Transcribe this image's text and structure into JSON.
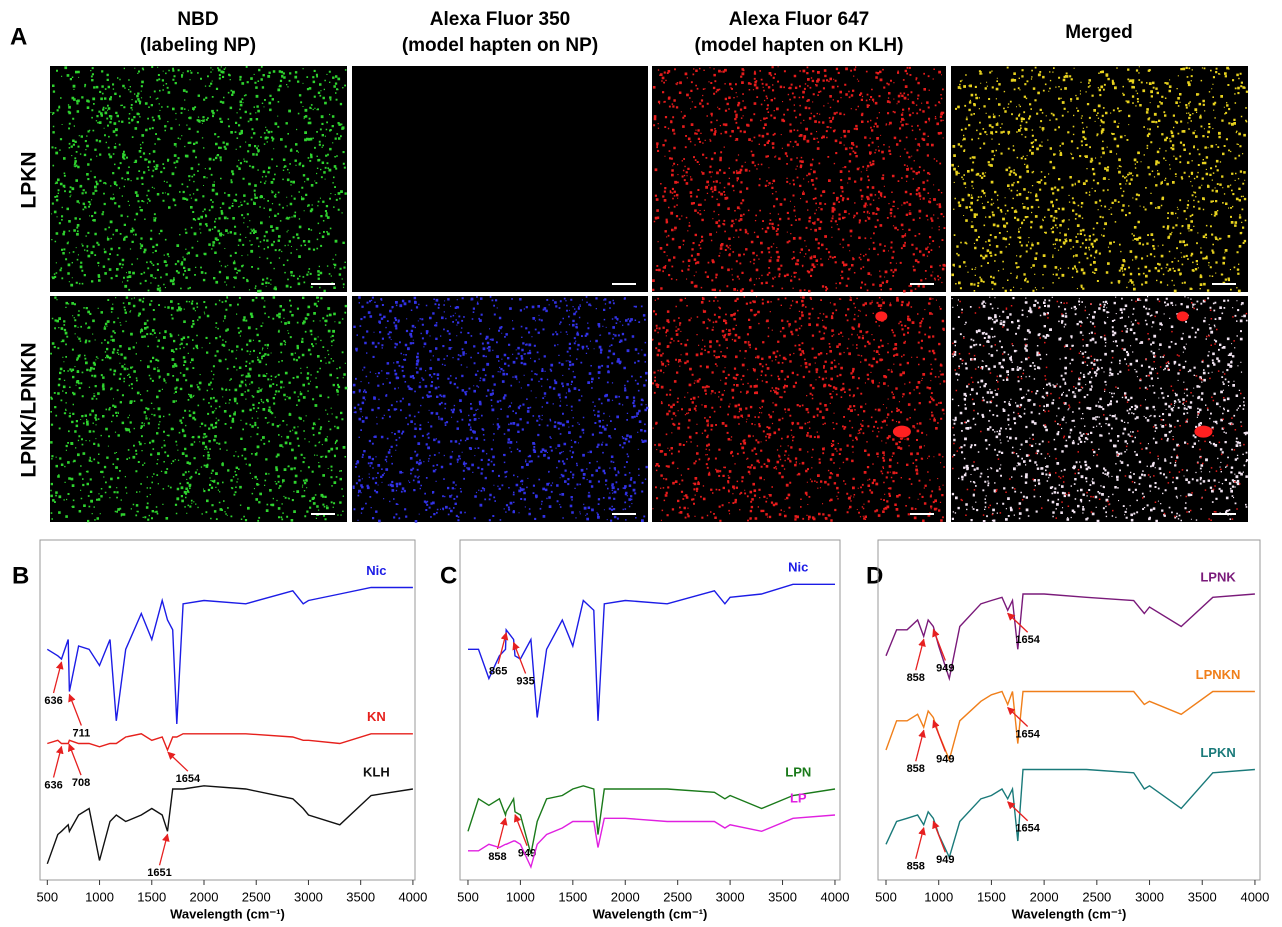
{
  "panel_a": {
    "label": "A",
    "columns": [
      [
        "NBD",
        "(labeling NP)"
      ],
      [
        "Alexa Fluor 350",
        "(model hapten on NP)"
      ],
      [
        "Alexa Fluor 647",
        "(model hapten on KLH)"
      ],
      [
        "Merged"
      ]
    ],
    "rows": [
      "LPKN",
      "LPNK/LPNKN"
    ]
  },
  "chart_data": [
    {
      "type": "line",
      "label": "B",
      "xlabel": "Wavelength (cm⁻¹)",
      "xlim": [
        430,
        4020
      ],
      "ylim": [
        0,
        100
      ],
      "xticks": [
        500,
        1000,
        1500,
        2000,
        2500,
        3000,
        3500,
        4000
      ],
      "x": [
        500,
        600,
        636,
        700,
        711,
        800,
        900,
        1000,
        1100,
        1160,
        1250,
        1400,
        1500,
        1600,
        1651,
        1700,
        1740,
        1800,
        2000,
        2400,
        2850,
        2950,
        3000,
        3300,
        3600,
        4000
      ],
      "series": [
        {
          "name": "Nic",
          "color": "#1c1ce6",
          "peaks": [
            636,
            711
          ],
          "values": [
            71,
            69,
            68,
            74,
            58,
            72,
            71,
            66,
            74,
            49,
            71,
            82,
            74,
            86,
            80,
            77,
            48,
            85,
            86,
            85,
            89,
            85,
            86,
            88,
            90,
            90
          ]
        },
        {
          "name": "KN",
          "color": "#e6201c",
          "peaks": [
            636,
            708,
            1654
          ],
          "values": [
            42,
            43,
            42,
            42,
            43,
            42,
            42,
            41,
            42,
            42,
            44,
            45,
            43,
            44,
            40,
            44,
            44,
            45,
            45,
            45,
            44,
            43,
            43,
            42,
            45,
            45
          ]
        },
        {
          "name": "KLH",
          "color": "#111111",
          "peaks": [
            1651
          ],
          "values": [
            5,
            14,
            15,
            17,
            15,
            20,
            22,
            6,
            18,
            20,
            18,
            20,
            22,
            20,
            15,
            28,
            28,
            28,
            29,
            28,
            25,
            22,
            20,
            17,
            26,
            28
          ]
        }
      ]
    },
    {
      "type": "line",
      "label": "C",
      "xlabel": "Wavelength (cm⁻¹)",
      "xlim": [
        424,
        4048
      ],
      "ylim": [
        0,
        100
      ],
      "xticks": [
        500,
        1000,
        1500,
        2000,
        2500,
        3000,
        3500,
        4000
      ],
      "x": [
        500,
        600,
        700,
        800,
        858,
        865,
        935,
        949,
        1000,
        1100,
        1160,
        1250,
        1400,
        1500,
        1600,
        1700,
        1740,
        1800,
        2000,
        2400,
        2850,
        2950,
        3000,
        3300,
        3600,
        4000
      ],
      "series": [
        {
          "name": "Nic",
          "color": "#1c1ce6",
          "peaks": [
            865,
            935
          ],
          "values": [
            71,
            71,
            62,
            69,
            71,
            77,
            74,
            69,
            68,
            74,
            50,
            71,
            80,
            72,
            86,
            83,
            49,
            85,
            86,
            85,
            89,
            85,
            87,
            88,
            91,
            91
          ]
        },
        {
          "name": "LPN",
          "color": "#1a7a1a",
          "peaks": [
            858,
            949
          ],
          "values": [
            15,
            25,
            23,
            25,
            20,
            21,
            25,
            21,
            20,
            8,
            18,
            25,
            26,
            28,
            29,
            28,
            14,
            28,
            28,
            28,
            27,
            25,
            26,
            22,
            26,
            28
          ]
        },
        {
          "name": "LP",
          "color": "#e020e0",
          "peaks": [],
          "values": [
            9,
            9,
            11,
            10,
            11,
            11,
            12,
            12,
            11,
            4,
            11,
            14,
            16,
            18,
            18,
            18,
            10,
            19,
            19,
            18,
            18,
            16,
            17,
            15,
            19,
            20
          ]
        }
      ]
    },
    {
      "type": "line",
      "label": "D",
      "xlabel": "Wavelength (cm⁻¹)",
      "xlim": [
        424,
        4048
      ],
      "ylim": [
        0,
        100
      ],
      "xticks": [
        500,
        1000,
        1500,
        2000,
        2500,
        3000,
        3500,
        4000
      ],
      "x": [
        500,
        600,
        700,
        800,
        858,
        900,
        949,
        1000,
        1100,
        1200,
        1400,
        1500,
        1600,
        1654,
        1700,
        1750,
        1800,
        2000,
        2400,
        2850,
        2950,
        3000,
        3300,
        3600,
        4000
      ],
      "series": [
        {
          "name": "LPNK",
          "color": "#7a1a7a",
          "peaks": [
            858,
            949,
            1654
          ],
          "values": [
            69,
            77,
            77,
            80,
            75,
            80,
            78,
            72,
            62,
            78,
            85,
            86,
            87,
            83,
            86,
            71,
            88,
            88,
            87,
            86,
            82,
            84,
            78,
            87,
            88
          ]
        },
        {
          "name": "LPNKN",
          "color": "#f07f1a",
          "peaks": [
            858,
            949,
            1654
          ],
          "values": [
            40,
            49,
            49,
            51,
            47,
            52,
            50,
            45,
            37,
            49,
            55,
            57,
            58,
            54,
            58,
            42,
            58,
            58,
            58,
            58,
            54,
            55,
            51,
            58,
            58
          ]
        },
        {
          "name": "LPKN",
          "color": "#1a7a7a",
          "peaks": [
            858,
            949,
            1654
          ],
          "values": [
            11,
            18,
            19,
            20,
            17,
            21,
            19,
            14,
            7,
            18,
            25,
            26,
            28,
            25,
            28,
            12,
            34,
            34,
            34,
            33,
            28,
            29,
            22,
            33,
            34
          ]
        }
      ]
    }
  ]
}
